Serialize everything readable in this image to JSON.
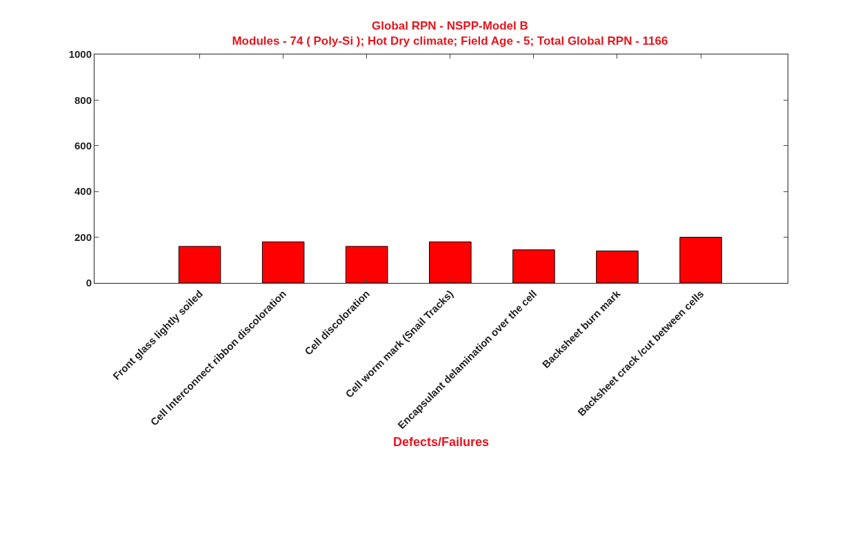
{
  "chart_data": {
    "type": "bar",
    "title": "Global RPN - NSPP-Model B",
    "subtitle": "Modules - 74 ( Poly-Si ); Hot Dry climate; Field Age - 5; Total Global RPN - 1166",
    "xlabel": "Defects/Failures",
    "categories": [
      "Front glass lightly soiled",
      "Cell Interconnect ribbon discoloration",
      "Cell discoloration",
      "Cell worm mark (Snail Tracks)",
      "Encapsulant delamination over the cell",
      "Backsheet burn mark",
      "Backsheet crack /cut between cells"
    ],
    "values": [
      160,
      180,
      160,
      180,
      145,
      140,
      200
    ],
    "color": "#ff0000",
    "ylim": [
      0,
      1000
    ],
    "yticks": [
      0,
      200,
      400,
      600,
      800,
      1000
    ],
    "grid": false
  }
}
